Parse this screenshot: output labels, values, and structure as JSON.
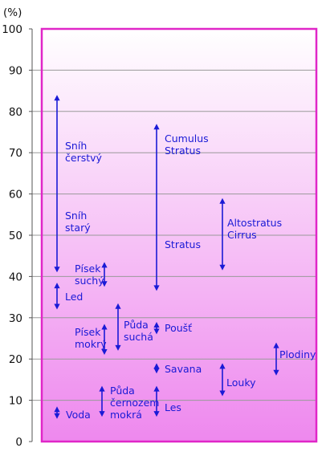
{
  "chart_data": {
    "type": "range",
    "title": "",
    "xlabel": "",
    "ylabel": "(%)",
    "ylim": [
      0,
      100
    ],
    "yticks": [
      0,
      10,
      20,
      30,
      40,
      50,
      60,
      70,
      80,
      90,
      100
    ],
    "grid": true,
    "colors": {
      "gradient_top": "#ffffff",
      "gradient_bottom": "#ee88ee",
      "frame": "#e026c8",
      "arrow": "#1a1ad6",
      "text": "#1a1ad6"
    },
    "ranges": [
      {
        "label_lines": [
          "Sníh",
          "čerstvý"
        ],
        "min": 41,
        "max": 84
      },
      {
        "label_lines": [
          "Sníh",
          "starý"
        ],
        "min": 41,
        "max": 84
      },
      {
        "label_lines": [
          "Led"
        ],
        "min": 32,
        "max": 38.5
      },
      {
        "label_lines": [
          "Voda"
        ],
        "min": 5.5,
        "max": 8.5
      },
      {
        "label_lines": [
          "Písek",
          "suchý"
        ],
        "min": 37.5,
        "max": 43.5
      },
      {
        "label_lines": [
          "Písek",
          "mokrý"
        ],
        "min": 21,
        "max": 28.5
      },
      {
        "label_lines": [
          "Půda",
          "černozem",
          "mokrá"
        ],
        "min": 6,
        "max": 13.5
      },
      {
        "label_lines": [
          "Půda",
          "suchá"
        ],
        "min": 22,
        "max": 33.5
      },
      {
        "label_lines": [
          "Cumulus",
          "Stratus"
        ],
        "min": 36.5,
        "max": 77
      },
      {
        "label_lines": [
          "Stratus"
        ],
        "min": 36.5,
        "max": 77
      },
      {
        "label_lines": [
          "Poušť"
        ],
        "min": 26,
        "max": 29
      },
      {
        "label_lines": [
          "Savana"
        ],
        "min": 16.5,
        "max": 19
      },
      {
        "label_lines": [
          "Les"
        ],
        "min": 6,
        "max": 13.5
      },
      {
        "label_lines": [
          "Altostratus",
          "Cirrus"
        ],
        "min": 41.5,
        "max": 59
      },
      {
        "label_lines": [
          "Louky"
        ],
        "min": 11,
        "max": 19
      },
      {
        "label_lines": [
          "Plodiny"
        ],
        "min": 16,
        "max": 24
      }
    ]
  }
}
